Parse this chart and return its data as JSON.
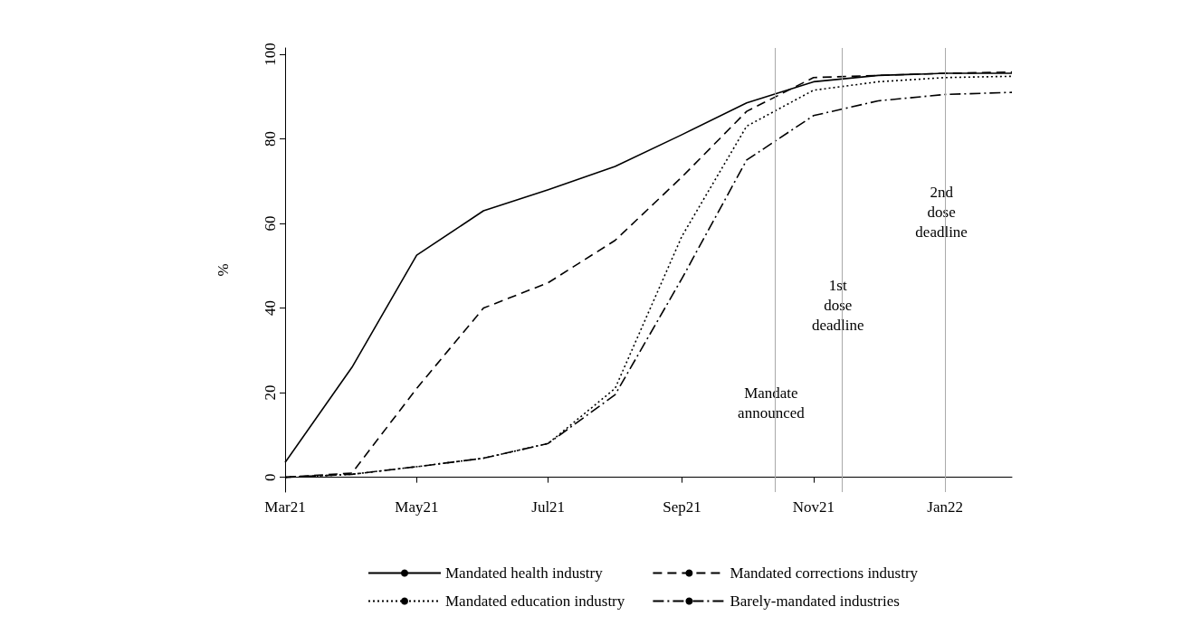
{
  "chart_data": {
    "type": "line",
    "ylabel": "%",
    "x": [
      "2021-03",
      "2021-04",
      "2021-05",
      "2021-06",
      "2021-07",
      "2021-08",
      "2021-09",
      "2021-10",
      "2021-11",
      "2021-12",
      "2022-01",
      "2022-02"
    ],
    "xlim": [
      "2021-03",
      "2022-02"
    ],
    "xticks": [
      {
        "value": "2021-03",
        "label": "Mar21"
      },
      {
        "value": "2021-05",
        "label": "May21"
      },
      {
        "value": "2021-07",
        "label": "Jul21"
      },
      {
        "value": "2021-09",
        "label": "Sep21"
      },
      {
        "value": "2021-11",
        "label": "Nov21"
      },
      {
        "value": "2022-01",
        "label": "Jan22"
      }
    ],
    "ylim": [
      -3.5,
      101.5
    ],
    "yticks": [
      0,
      20,
      40,
      60,
      80,
      100
    ],
    "series": [
      {
        "name": "Mandated health industry",
        "color": "#000000",
        "line_style": "solid",
        "values": [
          3.5,
          26,
          52.5,
          63,
          68,
          73.5,
          81,
          88.5,
          93.5,
          95,
          95.5,
          95.5
        ]
      },
      {
        "name": "Mandated corrections industry",
        "color": "#000000",
        "line_style": "dashed",
        "values": [
          0,
          1,
          21,
          40,
          46,
          56,
          71,
          86.5,
          94.5,
          95,
          95.5,
          95.8
        ]
      },
      {
        "name": "Mandated education industry",
        "color": "#000000",
        "line_style": "dotted",
        "values": [
          0,
          0.7,
          2.5,
          4.5,
          8,
          21,
          57,
          83,
          91.5,
          93.5,
          94.5,
          94.8
        ]
      },
      {
        "name": "Barely-mandated industries",
        "color": "#000000",
        "line_style": "dashdot",
        "values": [
          0,
          0.7,
          2.5,
          4.5,
          8,
          19.5,
          47,
          75,
          85.5,
          89,
          90.5,
          91
        ]
      }
    ],
    "ref_lines": [
      {
        "axis": "x",
        "value": "2021-10-14",
        "label": "Mandate announced",
        "color": "#aaaaaa"
      },
      {
        "axis": "x",
        "value": "2021-11-14",
        "label": "1st dose deadline",
        "color": "#aaaaaa"
      },
      {
        "axis": "x",
        "value": "2022-01-01",
        "label": "2nd dose deadline",
        "color": "#aaaaaa"
      }
    ],
    "grid": false,
    "legend": "bottom",
    "marker": "none"
  }
}
